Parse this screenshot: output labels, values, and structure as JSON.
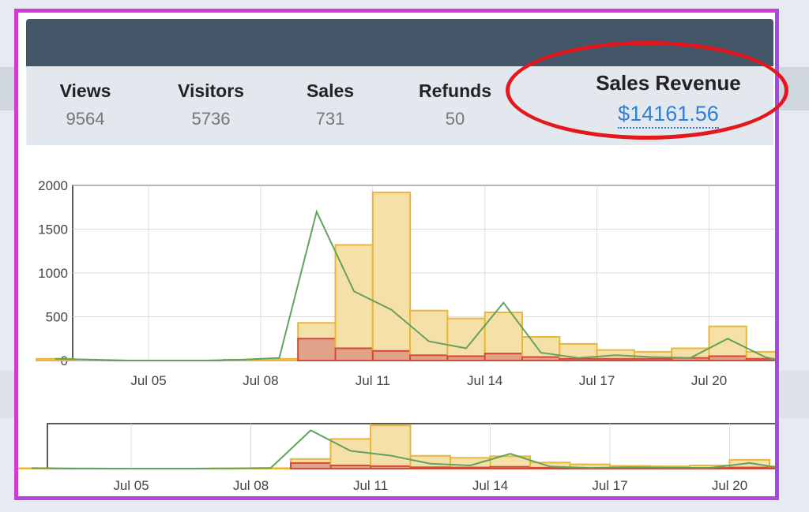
{
  "stats": {
    "views": {
      "label": "Views",
      "value": "9564"
    },
    "visitors": {
      "label": "Visitors",
      "value": "5736"
    },
    "sales": {
      "label": "Sales",
      "value": "731"
    },
    "refunds": {
      "label": "Refunds",
      "value": "50"
    },
    "revenue": {
      "label": "Sales Revenue",
      "value": "$14161.56"
    }
  },
  "colors": {
    "highlight": "#e4171e",
    "frame": "#d23ad8",
    "sales_bar_fill": "#f5e1a8",
    "sales_bar_stroke": "#e8b63a",
    "refund_bar_fill": "#e0a389",
    "refund_bar_stroke": "#d34a3a",
    "line": "#62a25f",
    "link": "#2f7fd6"
  },
  "chart_data": [
    {
      "type": "bar",
      "title": "",
      "xlabel": "",
      "ylabel": "",
      "ylim": [
        0,
        2000
      ],
      "yticks": [
        "0",
        "500",
        "1000",
        "1500",
        "2000"
      ],
      "xticks": [
        "Jul 05",
        "Jul 08",
        "Jul 11",
        "Jul 14",
        "Jul 17",
        "Jul 20"
      ],
      "grid": true,
      "series": [
        {
          "name": "",
          "kind": "bar",
          "values": [
            20,
            0,
            0,
            0,
            0,
            10,
            20,
            430,
            1320,
            1920,
            570,
            480,
            550,
            270,
            190,
            120,
            100,
            140,
            390,
            100,
            80
          ]
        },
        {
          "name": "",
          "kind": "bar",
          "values": [
            0,
            0,
            0,
            0,
            0,
            0,
            0,
            250,
            140,
            110,
            60,
            50,
            80,
            40,
            20,
            20,
            20,
            30,
            50,
            20,
            10
          ]
        },
        {
          "name": "",
          "kind": "line",
          "values": [
            20,
            10,
            0,
            0,
            0,
            10,
            30,
            1700,
            790,
            580,
            220,
            140,
            660,
            90,
            30,
            60,
            40,
            30,
            250,
            40,
            0
          ]
        }
      ]
    },
    {
      "type": "bar",
      "xticks": [
        "Jul 05",
        "Jul 08",
        "Jul 11",
        "Jul 14",
        "Jul 17",
        "Jul 20"
      ],
      "grid": true,
      "note_overview": true
    }
  ]
}
